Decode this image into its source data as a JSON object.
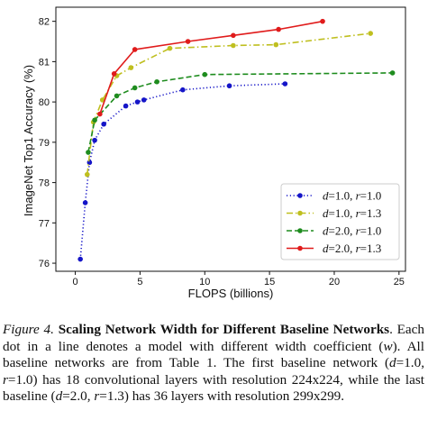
{
  "chart_data": {
    "type": "line",
    "xlabel": "FLOPS (billions)",
    "ylabel": "ImageNet Top1 Accuracy (%)",
    "xlim": [
      -1.5,
      25.5
    ],
    "ylim": [
      75.8,
      82.35
    ],
    "xticks": [
      0,
      5,
      10,
      15,
      20,
      25
    ],
    "yticks": [
      76,
      77,
      78,
      79,
      80,
      81,
      82
    ],
    "grid": false,
    "legend_position": "lower-right",
    "series": [
      {
        "name": "d=1.0, r=1.0",
        "legend": {
          "d": "1.0",
          "r": "1.0"
        },
        "color": "#1515c8",
        "linestyle": "dotted",
        "x": [
          0.39,
          0.77,
          1.1,
          1.5,
          2.2,
          3.9,
          4.8,
          5.3,
          8.3,
          11.9,
          16.2
        ],
        "y": [
          76.1,
          77.5,
          78.5,
          79.05,
          79.45,
          79.9,
          80.0,
          80.05,
          80.3,
          80.4,
          80.45
        ]
      },
      {
        "name": "d=1.0, r=1.3",
        "legend": {
          "d": "1.0",
          "r": "1.3"
        },
        "color": "#bfbf1f",
        "linestyle": "dashdot",
        "x": [
          0.92,
          1.4,
          2.1,
          3.2,
          4.3,
          7.3,
          12.2,
          15.5,
          22.8
        ],
        "y": [
          78.2,
          79.5,
          80.05,
          80.65,
          80.85,
          81.33,
          81.4,
          81.42,
          81.7
        ]
      },
      {
        "name": "d=2.0, r=1.0",
        "legend": {
          "d": "2.0",
          "r": "1.0"
        },
        "color": "#1e8c1e",
        "linestyle": "dashed",
        "x": [
          1.0,
          1.5,
          3.2,
          4.6,
          6.3,
          10.0,
          24.5
        ],
        "y": [
          78.75,
          79.55,
          80.15,
          80.35,
          80.5,
          80.68,
          80.72
        ]
      },
      {
        "name": "d=2.0, r=1.3",
        "legend": {
          "d": "2.0",
          "r": "1.3"
        },
        "color": "#e01b1b",
        "linestyle": "solid",
        "x": [
          1.9,
          3.0,
          4.6,
          8.7,
          12.2,
          15.7,
          19.1
        ],
        "y": [
          79.7,
          80.7,
          81.3,
          81.5,
          81.65,
          81.8,
          82.0
        ]
      }
    ]
  },
  "caption": {
    "figure_number": "Figure 4.",
    "title": "Scaling Network Width for Different Baseline Networks",
    "seg1": ". Each dot in a line denotes a model with different width coefficient (",
    "w": "w",
    "seg2": "). All baseline networks are from Table 1. The first baseline network (",
    "d1": "d",
    "seg3": "=1.0, ",
    "r1": "r",
    "seg4": "=1.0) has 18 convolutional layers with resolution 224x224, while the last baseline (",
    "d2": "d",
    "seg5": "=2.0, ",
    "r2": "r",
    "seg6": "=1.3) has 36 layers with resolution 299x299."
  }
}
